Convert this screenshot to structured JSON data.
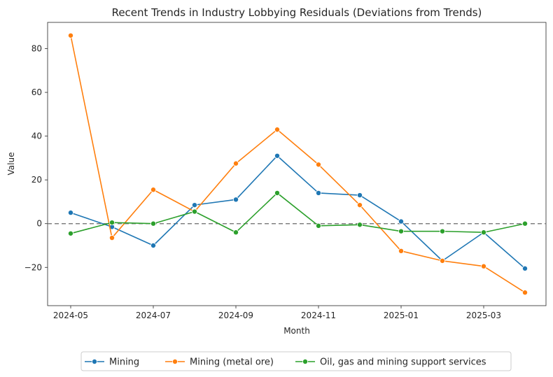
{
  "chart_data": {
    "type": "line",
    "title": "Recent Trends in Industry Lobbying Residuals (Deviations from Trends)",
    "xlabel": "Month",
    "ylabel": "Value",
    "x": [
      "2024-05",
      "2024-06",
      "2024-07",
      "2024-08",
      "2024-09",
      "2024-10",
      "2024-11",
      "2024-12",
      "2025-01",
      "2025-02",
      "2025-03",
      "2025-04"
    ],
    "xticks": [
      "2024-05",
      "2024-07",
      "2024-09",
      "2024-11",
      "2025-01",
      "2025-03"
    ],
    "yticks": [
      -20,
      0,
      20,
      40,
      60,
      80
    ],
    "ylim": [
      -37.5,
      92
    ],
    "reference_line": {
      "y": 0,
      "style": "dashed",
      "color": "#808080"
    },
    "series": [
      {
        "name": "Mining",
        "color": "#1f77b4",
        "values": [
          5,
          -1.5,
          -10,
          8.5,
          11,
          31,
          14,
          13,
          1,
          -17,
          -4,
          -20.5
        ]
      },
      {
        "name": "Mining (metal ore)",
        "color": "#ff7f0e",
        "values": [
          86,
          -6.5,
          15.5,
          5.5,
          27.5,
          43,
          27,
          8.5,
          -12.5,
          -17,
          -19.5,
          -31.5
        ]
      },
      {
        "name": "Oil, gas and mining support services",
        "color": "#2ca02c",
        "values": [
          -4.5,
          0.5,
          0,
          5.5,
          -4,
          14,
          -1,
          -0.5,
          -3.5,
          -3.5,
          -4,
          0
        ]
      }
    ],
    "legend": {
      "position": "bottom-center",
      "columns": 3
    },
    "grid": false
  }
}
